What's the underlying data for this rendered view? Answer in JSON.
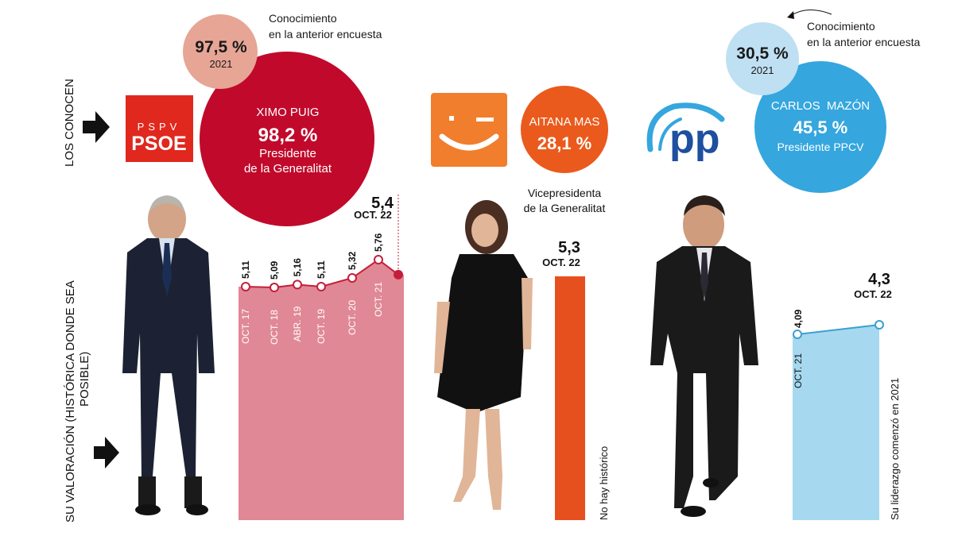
{
  "side_labels": {
    "row1": "LOS CONOCEN",
    "row2_line1": "SU VALORACIÓN (HISTÓRICA DONDE SEA",
    "row2_line2": "POSIBLE)"
  },
  "candidates": [
    {
      "party_logo_text_top": "PSPV",
      "party_logo_text": "PSOE",
      "name": "XIMO PUIG",
      "known": "98,2 %",
      "role_line1": "Presidente",
      "role_line2": "de la Generalitat",
      "previous_known": "97,5 %",
      "previous_year": "2021",
      "previous_note_line1": "Conocimiento",
      "previous_note_line2": "en la anterior encuesta",
      "latest_value": "5,4",
      "latest_date": "OCT. 22",
      "colors": {
        "circle": "#c10a2b",
        "prev": "#e7a595",
        "bar": "#e08895",
        "line": "#c41e3a"
      }
    },
    {
      "name": "AITANA MAS",
      "known": "28,1 %",
      "role_line1": "Vicepresidenta",
      "role_line2": "de la Generalitat",
      "latest_value": "5,3",
      "latest_date": "OCT. 22",
      "note": "No hay histórico",
      "colors": {
        "circle": "#ea5a1c",
        "logo": "#f07e2d",
        "bar": "#e6501e"
      }
    },
    {
      "name": "CARLOS  MAZÓN",
      "known": "45,5 %",
      "role_line1": "Presidente PPCV",
      "previous_known": "30,5 %",
      "previous_year": "2021",
      "previous_note_line1": "Conocimiento",
      "previous_note_line2": "en la anterior encuesta",
      "latest_value": "4,3",
      "latest_date": "OCT. 22",
      "note": "Su liderazgo comenzó en 2021",
      "colors": {
        "circle": "#35a6de",
        "prev": "#bfe0f3",
        "bar": "#a6d8f0",
        "line": "#3aa0d0",
        "logo": "#1e4fa0"
      }
    }
  ],
  "chart_data": [
    {
      "type": "area",
      "series": [
        {
          "name": "XIMO PUIG",
          "values": [
            5.11,
            5.09,
            5.16,
            5.11,
            5.32,
            5.76,
            5.4
          ]
        }
      ],
      "categories": [
        "OCT. 17",
        "OCT. 18",
        "ABR. 19",
        "OCT. 19",
        "OCT. 20",
        "OCT. 21",
        "OCT. 22"
      ],
      "labels": [
        "5,11",
        "5,09",
        "5,16",
        "5,11",
        "5,32",
        "5,76"
      ]
    },
    {
      "type": "bar",
      "categories": [
        "OCT. 22"
      ],
      "series": [
        {
          "name": "AITANA MAS",
          "values": [
            5.3
          ]
        }
      ]
    },
    {
      "type": "area",
      "series": [
        {
          "name": "CARLOS  MAZÓN",
          "values": [
            4.09,
            4.3
          ]
        }
      ],
      "categories": [
        "OCT. 21",
        "OCT. 22"
      ],
      "labels": [
        "4,09"
      ]
    }
  ]
}
